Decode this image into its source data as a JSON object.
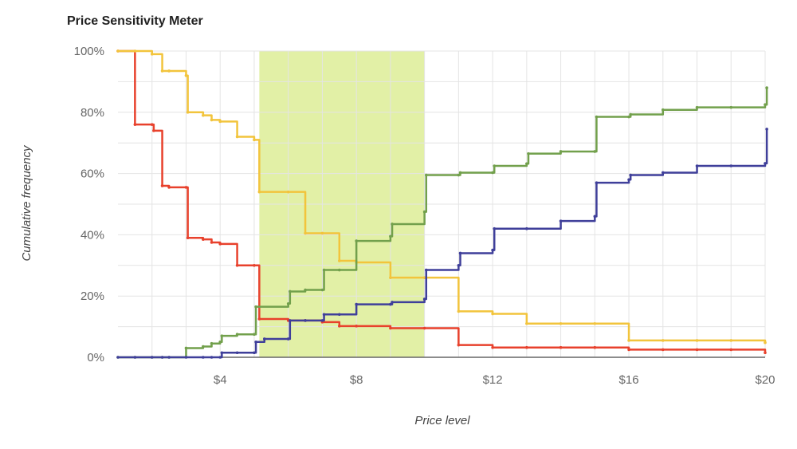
{
  "chart_data": {
    "type": "line",
    "title": "Price Sensitivity Meter",
    "xlabel": "Price level",
    "ylabel": "Cumulative frequency",
    "xlim": [
      1,
      20
    ],
    "ylim": [
      0,
      100
    ],
    "x_ticks": [
      4,
      8,
      12,
      16,
      20
    ],
    "x_tick_labels": [
      "$4",
      "$8",
      "$12",
      "$16",
      "$20"
    ],
    "y_ticks": [
      0,
      20,
      40,
      60,
      80,
      100
    ],
    "y_tick_labels": [
      "0%",
      "20%",
      "40%",
      "60%",
      "80%",
      "100%"
    ],
    "grid": true,
    "step_lines": true,
    "highlight_range": {
      "from": 5.15,
      "to": 10,
      "color": "#e2f0a6"
    },
    "series": [
      {
        "color": "#e8412c",
        "points": [
          [
            1,
            100
          ],
          [
            1.5,
            76
          ],
          [
            2,
            76
          ],
          [
            2.05,
            74
          ],
          [
            2.3,
            56
          ],
          [
            2.5,
            55.5
          ],
          [
            3,
            55.5
          ],
          [
            3.05,
            39
          ],
          [
            3.5,
            38.5
          ],
          [
            3.75,
            37.5
          ],
          [
            4,
            37
          ],
          [
            4.5,
            30
          ],
          [
            5,
            30
          ],
          [
            5.15,
            12.5
          ],
          [
            6,
            12
          ],
          [
            6.5,
            12
          ],
          [
            7,
            11.5
          ],
          [
            7.5,
            10.2
          ],
          [
            8,
            10.2
          ],
          [
            9,
            9.5
          ],
          [
            10,
            9.5
          ],
          [
            11,
            4
          ],
          [
            12,
            3.2
          ],
          [
            13,
            3.2
          ],
          [
            14,
            3.2
          ],
          [
            15,
            3.2
          ],
          [
            16,
            2.5
          ],
          [
            17,
            2.5
          ],
          [
            18,
            2.5
          ],
          [
            19,
            2.5
          ],
          [
            20,
            1.5
          ]
        ]
      },
      {
        "color": "#f2c43c",
        "points": [
          [
            1,
            100
          ],
          [
            1.5,
            100
          ],
          [
            2,
            99
          ],
          [
            2.3,
            93.5
          ],
          [
            2.5,
            93.5
          ],
          [
            3,
            92
          ],
          [
            3.05,
            80
          ],
          [
            3.5,
            79
          ],
          [
            3.75,
            77.5
          ],
          [
            4,
            77
          ],
          [
            4.5,
            72
          ],
          [
            5,
            71
          ],
          [
            5.15,
            54
          ],
          [
            6,
            54
          ],
          [
            6.5,
            40.5
          ],
          [
            7,
            40.5
          ],
          [
            7.5,
            31.5
          ],
          [
            8,
            31
          ],
          [
            9,
            26
          ],
          [
            10,
            26
          ],
          [
            11,
            15
          ],
          [
            12,
            14.2
          ],
          [
            13,
            11
          ],
          [
            14,
            11
          ],
          [
            15,
            11
          ],
          [
            16,
            5.5
          ],
          [
            17,
            5.5
          ],
          [
            18,
            5.5
          ],
          [
            19,
            5.5
          ],
          [
            20,
            4.8
          ]
        ]
      },
      {
        "color": "#72a04c",
        "points": [
          [
            1,
            0
          ],
          [
            1.5,
            0
          ],
          [
            2,
            0
          ],
          [
            2.3,
            0
          ],
          [
            2.5,
            0
          ],
          [
            3,
            3
          ],
          [
            3.5,
            3.5
          ],
          [
            3.75,
            4.5
          ],
          [
            4,
            5
          ],
          [
            4.05,
            7
          ],
          [
            4.5,
            7.5
          ],
          [
            5,
            7.5
          ],
          [
            5.05,
            16.5
          ],
          [
            6,
            17.5
          ],
          [
            6.05,
            21.5
          ],
          [
            6.5,
            22
          ],
          [
            7,
            22
          ],
          [
            7.05,
            28.5
          ],
          [
            7.5,
            28.5
          ],
          [
            8,
            38
          ],
          [
            9,
            39.5
          ],
          [
            9.05,
            43.5
          ],
          [
            10,
            47.5
          ],
          [
            10.05,
            59.5
          ],
          [
            11,
            59.5
          ],
          [
            11.05,
            60.3
          ],
          [
            12,
            60.3
          ],
          [
            12.05,
            62.5
          ],
          [
            13,
            63.2
          ],
          [
            13.05,
            66.5
          ],
          [
            14,
            67.2
          ],
          [
            15,
            67.2
          ],
          [
            15.05,
            78.5
          ],
          [
            16,
            78.5
          ],
          [
            16.05,
            79.3
          ],
          [
            17,
            80.8
          ],
          [
            18,
            81.6
          ],
          [
            19,
            81.6
          ],
          [
            20,
            82.5
          ],
          [
            20.05,
            88
          ]
        ]
      },
      {
        "color": "#3f3f9a",
        "points": [
          [
            1,
            0
          ],
          [
            1.5,
            0
          ],
          [
            2,
            0
          ],
          [
            2.3,
            0
          ],
          [
            2.5,
            0
          ],
          [
            3,
            0
          ],
          [
            3.5,
            0
          ],
          [
            3.75,
            0
          ],
          [
            4,
            0
          ],
          [
            4.05,
            1.5
          ],
          [
            4.5,
            1.5
          ],
          [
            5,
            1.5
          ],
          [
            5.05,
            5
          ],
          [
            5.3,
            6
          ],
          [
            6,
            6
          ],
          [
            6.05,
            12
          ],
          [
            6.5,
            12
          ],
          [
            7,
            12
          ],
          [
            7.05,
            14
          ],
          [
            7.5,
            14
          ],
          [
            8,
            17.3
          ],
          [
            9,
            17.3
          ],
          [
            9.05,
            18
          ],
          [
            10,
            19
          ],
          [
            10.05,
            28.5
          ],
          [
            11,
            30
          ],
          [
            11.05,
            34
          ],
          [
            12,
            35
          ],
          [
            12.05,
            42
          ],
          [
            13,
            42
          ],
          [
            14,
            44.5
          ],
          [
            15,
            46
          ],
          [
            15.05,
            57
          ],
          [
            16,
            58
          ],
          [
            16.05,
            59.5
          ],
          [
            17,
            60.3
          ],
          [
            18,
            62.5
          ],
          [
            19,
            62.5
          ],
          [
            20,
            63.3
          ],
          [
            20.05,
            74.5
          ]
        ]
      }
    ]
  }
}
